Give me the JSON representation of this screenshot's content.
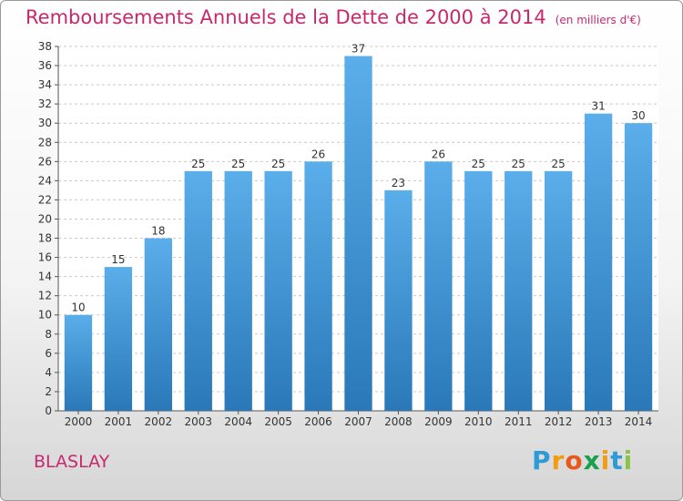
{
  "header": {
    "title": "Remboursements Annuels de la Dette de 2000 à 2014",
    "unit": "(en milliers d'€)"
  },
  "footer": {
    "place": "BLASLAY",
    "logo": "Proxiti"
  },
  "colors": {
    "title": "#c8286e",
    "bar_top": "#5aaeea",
    "bar_bottom": "#2a78b8"
  },
  "chart_data": {
    "type": "bar",
    "title": "Remboursements Annuels de la Dette de 2000 à 2014",
    "xlabel": "",
    "ylabel": "",
    "categories": [
      "2000",
      "2001",
      "2002",
      "2003",
      "2004",
      "2005",
      "2006",
      "2007",
      "2008",
      "2009",
      "2010",
      "2011",
      "2012",
      "2013",
      "2014"
    ],
    "values": [
      10,
      15,
      18,
      25,
      25,
      25,
      26,
      37,
      23,
      26,
      25,
      25,
      25,
      31,
      30
    ],
    "ylim": [
      0,
      38
    ],
    "ytick_step": 2,
    "grid": "horizontal-dashed",
    "legend": "none"
  }
}
